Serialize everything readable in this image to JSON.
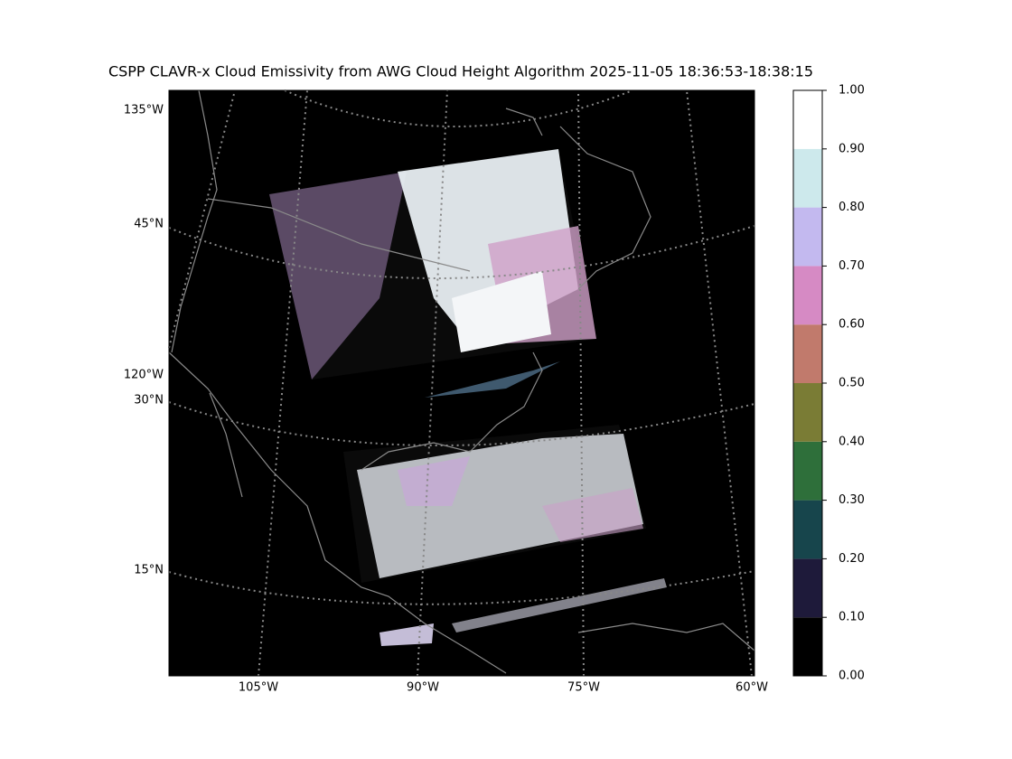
{
  "title": "CSPP CLAVR-x Cloud Emissivity from AWG Cloud Height Algorithm 2025-11-05 18:36:53-18:38:15",
  "map": {
    "left_labels": [
      "135°W",
      "45°N",
      "120°W",
      "30°N",
      "15°N"
    ],
    "bottom_labels": [
      "105°W",
      "90°W",
      "75°W",
      "60°W"
    ]
  },
  "colorbar": {
    "lim": [
      0,
      1
    ],
    "ticks": [
      {
        "value": 0,
        "label": "0.00"
      },
      {
        "value": 0.1,
        "label": "0.10"
      },
      {
        "value": 0.2,
        "label": "0.20"
      },
      {
        "value": 0.3,
        "label": "0.30"
      },
      {
        "value": 0.4,
        "label": "0.40"
      },
      {
        "value": 0.5,
        "label": "0.50"
      },
      {
        "value": 0.6,
        "label": "0.60"
      },
      {
        "value": 0.7,
        "label": "0.70"
      },
      {
        "value": 0.8,
        "label": "0.80"
      },
      {
        "value": 0.9,
        "label": "0.90"
      },
      {
        "value": 1,
        "label": "1.00"
      }
    ],
    "colors": [
      "#000000",
      "#1e1a3a",
      "#17454c",
      "#2e6f3a",
      "#7a7c35",
      "#c17a6c",
      "#d68ac4",
      "#c3b9ef",
      "#cde9ec",
      "#ffffff"
    ]
  }
}
